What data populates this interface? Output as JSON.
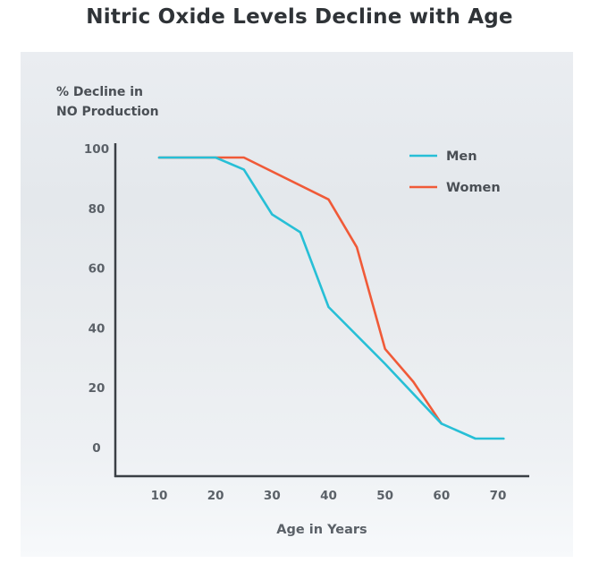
{
  "page_title": "Nitric Oxide Levels Decline with Age",
  "colors": {
    "men": "#27bfd6",
    "women": "#f05a38",
    "axis": "#3a3f45",
    "tick_text": "#5b6168"
  },
  "chart_data": {
    "type": "line",
    "title": "Nitric Oxide Levels Decline with Age",
    "ylabel_lines": [
      "% Decline in",
      "NO Production"
    ],
    "xlabel": "Age in Years",
    "xlim": [
      0,
      75
    ],
    "ylim": [
      -10,
      101
    ],
    "x_ticks": [
      10,
      20,
      30,
      40,
      50,
      60,
      70
    ],
    "y_ticks": [
      0,
      20,
      40,
      60,
      80,
      100
    ],
    "grid": false,
    "legend_position": "top-right",
    "series": [
      {
        "name": "Men",
        "color": "#27bfd6",
        "points": [
          [
            10,
            97
          ],
          [
            20,
            97
          ],
          [
            25,
            93
          ],
          [
            30,
            78
          ],
          [
            35,
            72
          ],
          [
            40,
            47
          ],
          [
            50,
            28
          ],
          [
            60,
            8
          ],
          [
            66,
            3
          ],
          [
            71,
            3
          ]
        ]
      },
      {
        "name": "Women",
        "color": "#f05a38",
        "points": [
          [
            10,
            97
          ],
          [
            25,
            97
          ],
          [
            40,
            83
          ],
          [
            45,
            67
          ],
          [
            50,
            33
          ],
          [
            55,
            22
          ],
          [
            60,
            8
          ]
        ]
      }
    ]
  }
}
